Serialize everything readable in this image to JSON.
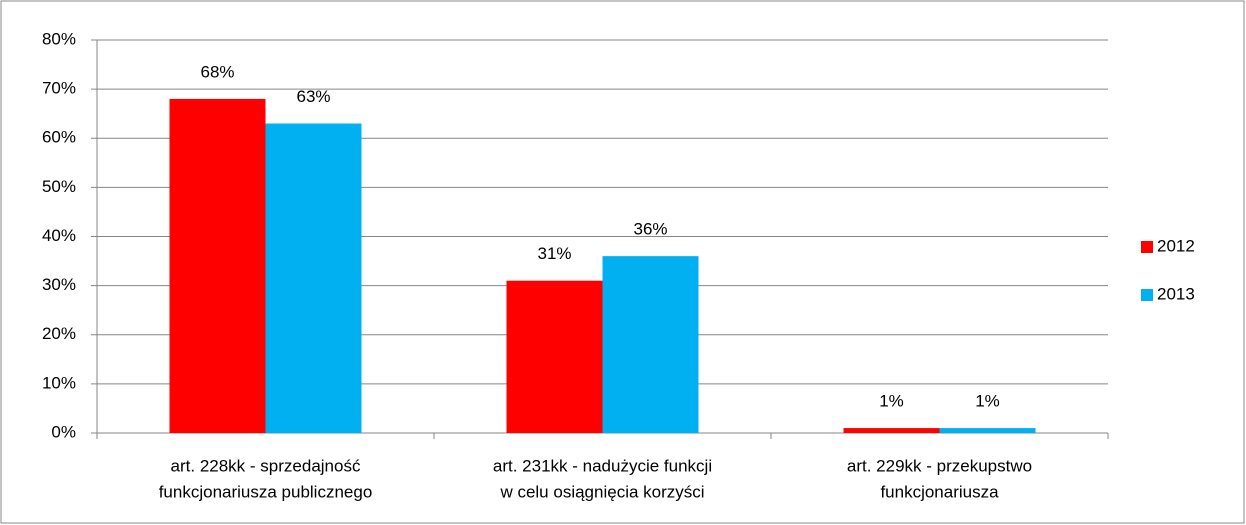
{
  "chart_data": {
    "type": "bar",
    "categories": [
      [
        "art. 228kk - sprzedajność",
        "funkcjonariusza publicznego"
      ],
      [
        "art. 231kk - nadużycie funkcji",
        "w celu osiągnięcia korzyści"
      ],
      [
        "art. 229kk - przekupstwo",
        "funkcjonariusza"
      ]
    ],
    "series": [
      {
        "name": "2012",
        "color": "#ff0000",
        "values": [
          68,
          31,
          1
        ],
        "value_labels": [
          "68%",
          "31%",
          "1%"
        ]
      },
      {
        "name": "2013",
        "color": "#00b0f0",
        "values": [
          63,
          36,
          1
        ],
        "value_labels": [
          "63%",
          "36%",
          "1%"
        ]
      }
    ],
    "ylim": [
      0,
      80
    ],
    "yticks": [
      {
        "value": 0,
        "label": "0%"
      },
      {
        "value": 10,
        "label": "10%"
      },
      {
        "value": 20,
        "label": "20%"
      },
      {
        "value": 30,
        "label": "30%"
      },
      {
        "value": 40,
        "label": "40%"
      },
      {
        "value": 50,
        "label": "50%"
      },
      {
        "value": 60,
        "label": "60%"
      },
      {
        "value": 70,
        "label": "70%"
      },
      {
        "value": 80,
        "label": "80%"
      }
    ],
    "grid": true,
    "legend": "right"
  }
}
